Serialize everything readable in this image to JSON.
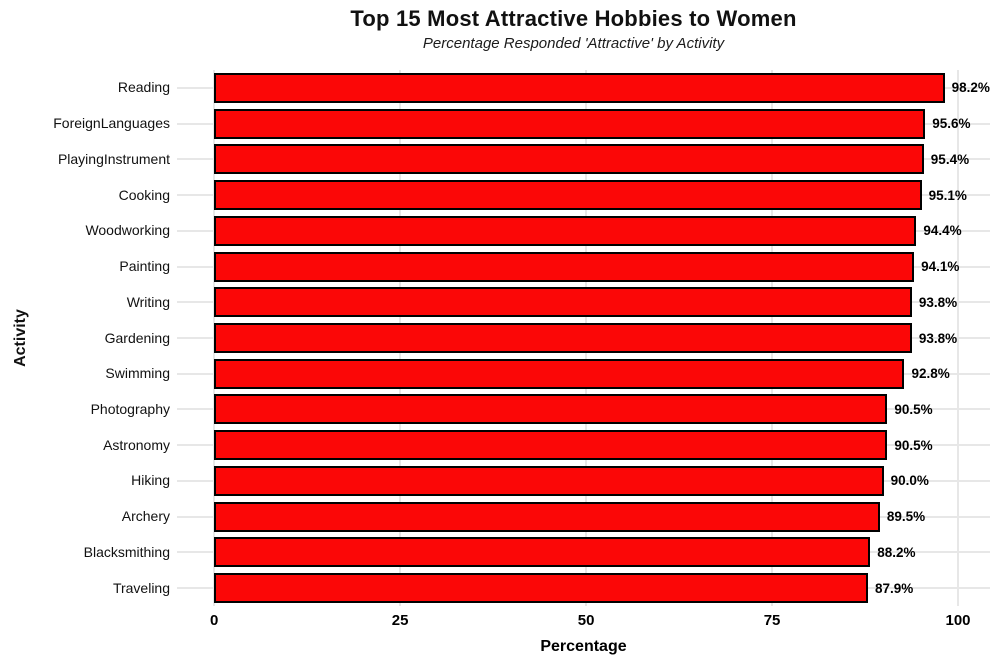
{
  "chart_data": {
    "type": "bar",
    "orientation": "horizontal",
    "title": "Top 15 Most Attractive Hobbies to Women",
    "subtitle": "Percentage Responded 'Attractive' by Activity",
    "xlabel": "Percentage",
    "ylabel": "Activity",
    "categories": [
      "Reading",
      "ForeignLanguages",
      "PlayingInstrument",
      "Cooking",
      "Woodworking",
      "Painting",
      "Writing",
      "Gardening",
      "Swimming",
      "Photography",
      "Astronomy",
      "Hiking",
      "Archery",
      "Blacksmithing",
      "Traveling"
    ],
    "values": [
      98.2,
      95.6,
      95.4,
      95.1,
      94.4,
      94.1,
      93.8,
      93.8,
      92.8,
      90.5,
      90.5,
      90.0,
      89.5,
      88.2,
      87.9
    ],
    "value_labels": [
      "98.2%",
      "95.6%",
      "95.4%",
      "95.1%",
      "94.4%",
      "94.1%",
      "93.8%",
      "93.8%",
      "92.8%",
      "90.5%",
      "90.5%",
      "90.0%",
      "89.5%",
      "88.2%",
      "87.9%"
    ],
    "xticks": [
      0,
      25,
      50,
      75,
      100
    ],
    "xtick_labels": [
      "0",
      "25",
      "50",
      "75",
      "100"
    ],
    "xlim": [
      -5,
      104.3
    ],
    "grid": true,
    "legend": null,
    "bar_color": "#fb0707",
    "bar_edge_color": "#000000",
    "gridline_color": "#e7e7e7",
    "background_color": "#ffffff"
  }
}
